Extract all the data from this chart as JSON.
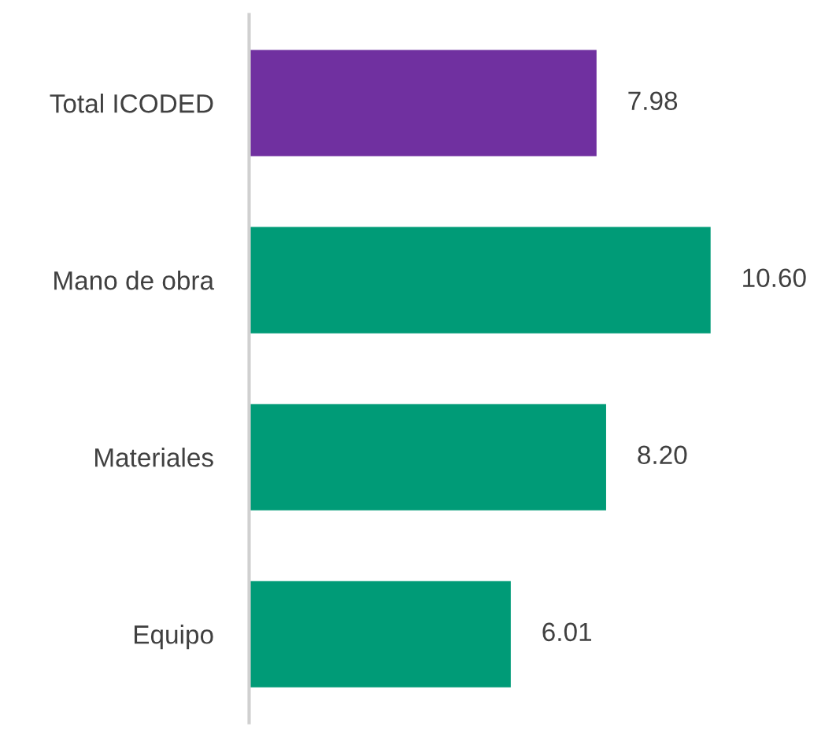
{
  "chart_data": {
    "type": "bar",
    "orientation": "horizontal",
    "categories": [
      "Total ICODED",
      "Mano de obra",
      "Materiales",
      "Equipo"
    ],
    "values": [
      7.98,
      10.6,
      8.2,
      6.01
    ],
    "colors": [
      "#7030a0",
      "#009b77",
      "#009b77",
      "#009b77"
    ],
    "value_labels": [
      "7.98",
      "10.60",
      "8.20",
      "6.01"
    ],
    "grid": false,
    "legend": false
  }
}
